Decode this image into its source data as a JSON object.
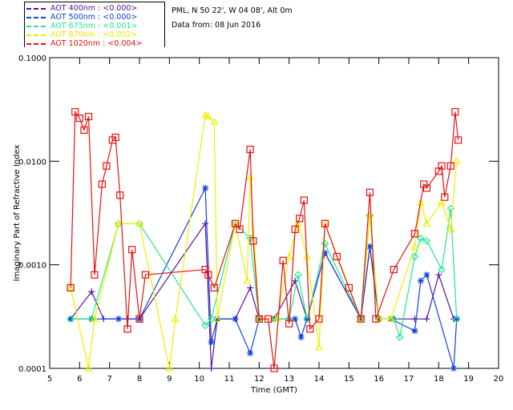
{
  "header": {
    "location": "PML, N 50 22', W 04 08', Alt 0m",
    "date": "Data from: 08 Jun 2016"
  },
  "legend": [
    {
      "label": "AOT  400nm : <0.000>",
      "color": "#5a10a0"
    },
    {
      "label": "AOT  500nm : <0.000>",
      "color": "#1040e0"
    },
    {
      "label": "AOT  675nm : <0.001>",
      "color": "#20e890"
    },
    {
      "label": "AOT  870nm : <0.002>",
      "color": "#f0f000"
    },
    {
      "label": "AOT 1020nm : <0.004>",
      "color": "#e81010"
    }
  ],
  "chart_data": {
    "type": "line",
    "title": "",
    "xlabel": "Time (GMT)",
    "ylabel": "Imaginary Part of Refractive Index",
    "xlim": [
      5,
      20
    ],
    "ylim": [
      0.0001,
      0.1
    ],
    "yscale": "log",
    "x_ticks": [
      "5",
      "6",
      "7",
      "8",
      "9",
      "10",
      "11",
      "12",
      "13",
      "14",
      "15",
      "16",
      "17",
      "18",
      "19",
      "20"
    ],
    "y_ticks": [
      "0.0001",
      "0.0010",
      "0.0100",
      "0.1000"
    ],
    "grid": false,
    "legend_position": "top-left",
    "series": [
      {
        "name": "AOT  400nm",
        "color": "#5a10a0",
        "marker": "plus",
        "x": [
          5.7,
          6.4,
          6.8,
          7.3,
          7.6,
          8.0,
          10.2,
          10.4,
          10.6,
          11.2,
          11.7,
          12.0,
          12.5,
          13.2,
          13.6,
          14.2,
          15.4,
          15.7,
          16.0,
          16.5,
          17.2,
          17.6,
          18.0,
          18.5
        ],
        "y": [
          0.0003,
          0.00055,
          0.0003,
          0.0003,
          0.0003,
          0.0003,
          0.0025,
          8e-05,
          0.0003,
          0.0003,
          0.0006,
          0.0003,
          0.0003,
          0.0007,
          0.0003,
          0.0013,
          0.0003,
          0.0015,
          0.0003,
          0.0003,
          0.0003,
          0.0003,
          0.0008,
          0.0003
        ]
      },
      {
        "name": "AOT  500nm",
        "color": "#1040e0",
        "marker": "asterisk",
        "x": [
          5.7,
          6.4,
          7.3,
          8.0,
          10.2,
          10.4,
          10.6,
          11.2,
          11.7,
          12.0,
          12.5,
          13.2,
          13.4,
          13.6,
          14.2,
          15.4,
          15.7,
          16.0,
          16.4,
          17.2,
          17.4,
          17.6,
          18.5,
          18.6
        ],
        "y": [
          0.0003,
          0.0003,
          0.0003,
          0.0003,
          0.0055,
          0.00018,
          0.0003,
          0.0003,
          0.00014,
          0.0003,
          0.0003,
          0.0003,
          0.0002,
          0.0003,
          0.0013,
          0.0003,
          0.0015,
          0.0003,
          0.0003,
          0.00023,
          0.0007,
          0.0008,
          0.0001,
          0.0003
        ]
      },
      {
        "name": "AOT  675nm",
        "color": "#20e890",
        "marker": "diamond",
        "x": [
          5.7,
          6.4,
          7.3,
          8.0,
          10.2,
          10.4,
          11.2,
          11.7,
          12.0,
          12.5,
          13.0,
          13.3,
          13.6,
          14.2,
          15.4,
          15.7,
          16.0,
          16.5,
          16.7,
          17.2,
          17.4,
          17.6,
          18.1,
          18.4,
          18.6
        ],
        "y": [
          0.0003,
          0.0003,
          0.0025,
          0.0025,
          0.00026,
          0.0003,
          0.0025,
          0.0018,
          0.0003,
          0.0003,
          0.0003,
          0.0008,
          0.0003,
          0.0016,
          0.0003,
          0.003,
          0.0003,
          0.0003,
          0.0002,
          0.0012,
          0.0018,
          0.0017,
          0.0009,
          0.0035,
          0.0003
        ]
      },
      {
        "name": "AOT  870nm",
        "color": "#f0f000",
        "marker": "triangle",
        "x": [
          5.7,
          6.3,
          6.5,
          7.3,
          8.0,
          9.0,
          9.2,
          10.2,
          10.3,
          10.5,
          10.6,
          11.2,
          11.6,
          11.7,
          12.0,
          12.6,
          13.0,
          13.3,
          13.6,
          14.0,
          14.2,
          15.4,
          15.7,
          16.0,
          16.4,
          17.2,
          17.4,
          17.6,
          18.1,
          18.4,
          18.6
        ],
        "y": [
          0.0006,
          0.0001,
          0.0003,
          0.0025,
          0.0025,
          0.0001,
          0.0003,
          0.028,
          0.027,
          0.024,
          0.0003,
          0.0025,
          0.0007,
          0.007,
          0.0003,
          0.0003,
          0.0012,
          0.0025,
          0.0012,
          0.00016,
          0.0025,
          0.0003,
          0.003,
          0.0003,
          0.0003,
          0.0015,
          0.004,
          0.0025,
          0.004,
          0.0022,
          0.01
        ]
      },
      {
        "name": "AOT 1020nm",
        "color": "#e81010",
        "marker": "square",
        "x": [
          5.7,
          5.85,
          6.0,
          6.15,
          6.3,
          6.5,
          6.75,
          6.9,
          7.1,
          7.2,
          7.35,
          7.6,
          7.75,
          8.0,
          8.2,
          10.2,
          10.3,
          10.5,
          11.2,
          11.35,
          11.7,
          11.8,
          12.0,
          12.3,
          12.5,
          12.8,
          13.0,
          13.2,
          13.35,
          13.5,
          13.7,
          14.0,
          14.2,
          14.6,
          15.0,
          15.4,
          15.7,
          15.9,
          16.5,
          17.2,
          17.5,
          17.6,
          18.0,
          18.1,
          18.2,
          18.4,
          18.55,
          18.65
        ],
        "y": [
          0.0006,
          0.03,
          0.026,
          0.02,
          0.027,
          0.0008,
          0.006,
          0.009,
          0.016,
          0.017,
          0.0047,
          0.00024,
          0.0014,
          0.0003,
          0.0008,
          0.0009,
          0.0008,
          0.0006,
          0.0025,
          0.0022,
          0.013,
          0.0017,
          0.0003,
          0.0003,
          0.0001,
          0.0011,
          0.00027,
          0.0022,
          0.0028,
          0.0042,
          0.00024,
          0.0003,
          0.0025,
          0.0012,
          0.0006,
          0.0003,
          0.005,
          0.0003,
          0.0009,
          0.002,
          0.006,
          0.0055,
          0.008,
          0.009,
          0.0045,
          0.009,
          0.03,
          0.016
        ]
      }
    ]
  }
}
